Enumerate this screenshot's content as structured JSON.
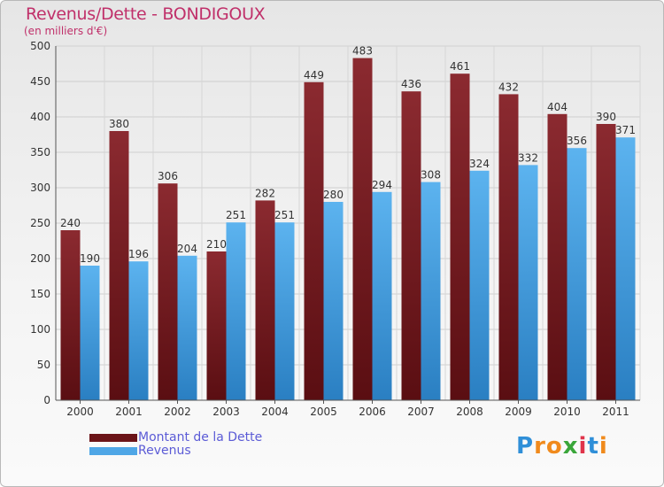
{
  "header": {
    "title": "Revenus/Dette - BONDIGOUX",
    "unit": "(en milliers d'€)"
  },
  "chart_data": {
    "type": "bar",
    "title": "Revenus/Dette - BONDIGOUX",
    "subtitle": "(en milliers d'€)",
    "xlabel": "",
    "ylabel": "",
    "categories": [
      "2000",
      "2001",
      "2002",
      "2003",
      "2004",
      "2005",
      "2006",
      "2007",
      "2008",
      "2009",
      "2010",
      "2011"
    ],
    "series": [
      {
        "name": "Montant de la Dette",
        "color": "#8b2a30",
        "values": [
          240,
          380,
          306,
          210,
          282,
          449,
          483,
          436,
          461,
          432,
          404,
          390
        ]
      },
      {
        "name": "Revenus",
        "color": "#4fa6e6",
        "values": [
          190,
          196,
          204,
          251,
          251,
          280,
          294,
          308,
          324,
          332,
          356,
          371
        ]
      }
    ],
    "ylim": [
      0,
      500
    ],
    "yticks": [
      0,
      50,
      100,
      150,
      200,
      250,
      300,
      350,
      400,
      450,
      500
    ],
    "grid": true,
    "legend": "bottom-left"
  },
  "legend": {
    "items": [
      {
        "label": "Montant de la Dette",
        "color": "#6b1418"
      },
      {
        "label": "Revenus",
        "color": "#4fa6e6"
      }
    ]
  },
  "logo": {
    "letters": [
      "P",
      "r",
      "o",
      "x",
      "i",
      "t",
      "i"
    ],
    "colors": [
      "#2f8fd8",
      "#f08a1c",
      "#f08a1c",
      "#3aa63a",
      "#e0344a",
      "#2f8fd8",
      "#f08a1c"
    ]
  }
}
